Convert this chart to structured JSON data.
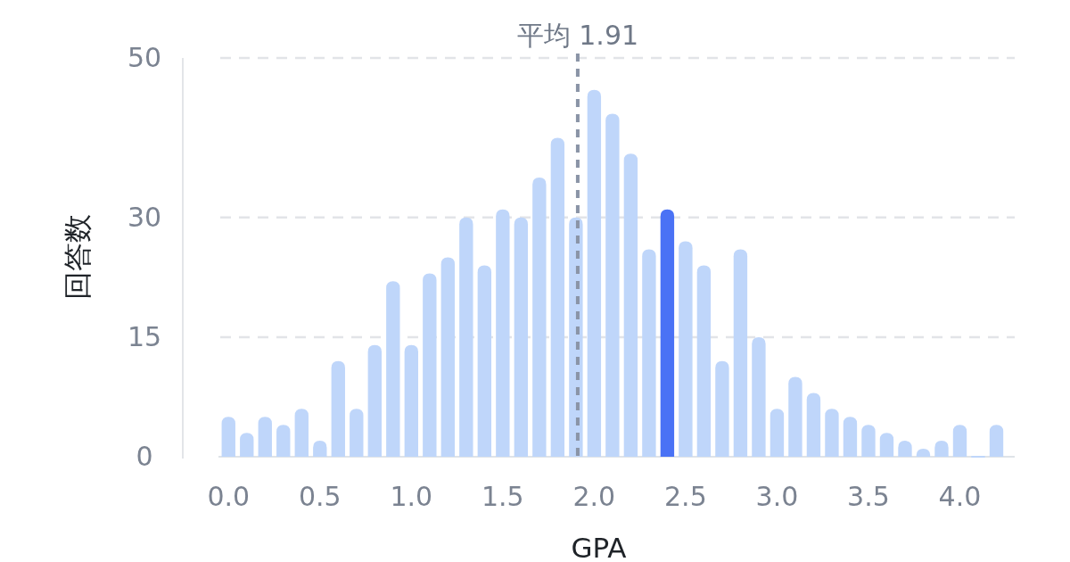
{
  "chart_data": {
    "type": "bar",
    "xlabel": "GPA",
    "ylabel": "回答数",
    "x": [
      0.0,
      0.1,
      0.2,
      0.3,
      0.4,
      0.5,
      0.6,
      0.7,
      0.8,
      0.9,
      1.0,
      1.1,
      1.2,
      1.3,
      1.4,
      1.5,
      1.6,
      1.7,
      1.8,
      1.9,
      2.0,
      2.1,
      2.2,
      2.3,
      2.4,
      2.5,
      2.6,
      2.7,
      2.8,
      2.9,
      3.0,
      3.1,
      3.2,
      3.3,
      3.4,
      3.5,
      3.6,
      3.7,
      3.8,
      3.9,
      4.0,
      4.1,
      4.2
    ],
    "values": [
      5,
      3,
      5,
      4,
      6,
      2,
      12,
      6,
      14,
      22,
      14,
      23,
      25,
      30,
      24,
      31,
      30,
      35,
      40,
      30,
      46,
      43,
      38,
      26,
      31,
      27,
      24,
      12,
      26,
      15,
      6,
      10,
      8,
      6,
      5,
      4,
      3,
      2,
      1,
      2,
      4,
      0,
      4
    ],
    "colors": [
      "#bfd6fa",
      "#bfd6fa",
      "#bfd6fa",
      "#bfd6fa",
      "#bfd6fa",
      "#bfd6fa",
      "#bfd6fa",
      "#bfd6fa",
      "#bfd6fa",
      "#bfd6fa",
      "#bfd6fa",
      "#bfd6fa",
      "#bfd6fa",
      "#bfd6fa",
      "#bfd6fa",
      "#bfd6fa",
      "#bfd6fa",
      "#bfd6fa",
      "#bfd6fa",
      "#bfd6fa",
      "#bfd6fa",
      "#bfd6fa",
      "#bfd6fa",
      "#bfd6fa",
      "#4a72f5",
      "#bfd6fa",
      "#bfd6fa",
      "#bfd6fa",
      "#bfd6fa",
      "#bfd6fa",
      "#bfd6fa",
      "#bfd6fa",
      "#bfd6fa",
      "#bfd6fa",
      "#bfd6fa",
      "#bfd6fa",
      "#bfd6fa",
      "#bfd6fa",
      "#bfd6fa",
      "#bfd6fa",
      "#bfd6fa",
      "#bfd6fa",
      "#bfd6fa"
    ],
    "xlim": [
      -0.25,
      4.3
    ],
    "xticks": [
      {
        "value": 0,
        "label": "0.0"
      },
      {
        "value": 0.5,
        "label": "0.5"
      },
      {
        "value": 1,
        "label": "1.0"
      },
      {
        "value": 1.5,
        "label": "1.5"
      },
      {
        "value": 2,
        "label": "2.0"
      },
      {
        "value": 2.5,
        "label": "2.5"
      },
      {
        "value": 3,
        "label": "3.0"
      },
      {
        "value": 3.5,
        "label": "3.5"
      },
      {
        "value": 4,
        "label": "4.0"
      }
    ],
    "ylim": [
      0,
      50
    ],
    "yticks": [
      0,
      15,
      30,
      50
    ],
    "grid": "y",
    "ref_lines": [
      {
        "axis": "x",
        "value": 1.91,
        "label": "平均 1.91",
        "color": "#8a94a6",
        "line_style": "dashed"
      }
    ]
  }
}
